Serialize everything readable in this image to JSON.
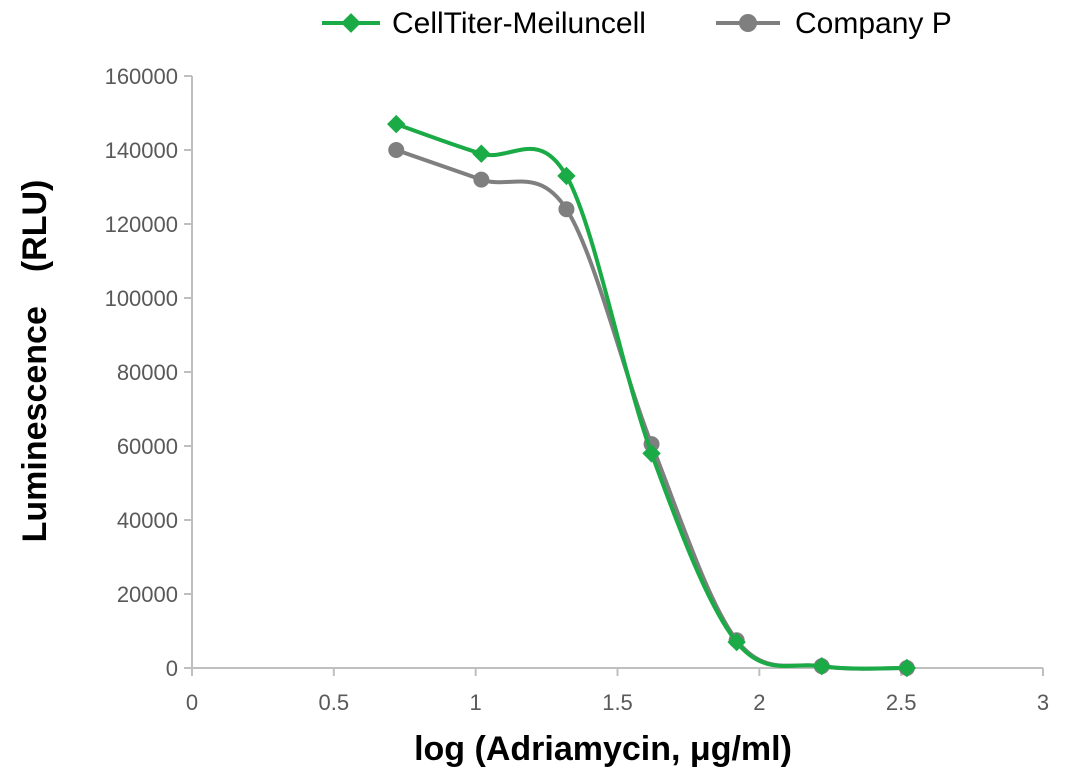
{
  "chart_data": {
    "type": "line",
    "smooth": true,
    "xlabel": "log (Adriamycin, μg/ml)",
    "ylabel": "Luminescence　(RLU)",
    "xlim": [
      0,
      3
    ],
    "ylim": [
      0,
      160000
    ],
    "x_ticks": [
      "0",
      "0.5",
      "1",
      "1.5",
      "2",
      "2.5",
      "3"
    ],
    "y_ticks": [
      "0",
      "20000",
      "40000",
      "60000",
      "80000",
      "100000",
      "120000",
      "140000",
      "160000"
    ],
    "grid": false,
    "legend": "top",
    "series": [
      {
        "name": "CellTiter-Meiluncell",
        "color": "#1aaa46",
        "marker": "diamond",
        "x": [
          0.72,
          1.02,
          1.32,
          1.62,
          1.92,
          2.22,
          2.52
        ],
        "y": [
          147000,
          139000,
          133000,
          58000,
          7000,
          500,
          0
        ]
      },
      {
        "name": "Company P",
        "color": "#7f7f7f",
        "marker": "circle",
        "x": [
          0.72,
          1.02,
          1.32,
          1.62,
          1.92,
          2.22,
          2.52
        ],
        "y": [
          140000,
          132000,
          124000,
          60500,
          7500,
          500,
          0
        ]
      }
    ]
  }
}
